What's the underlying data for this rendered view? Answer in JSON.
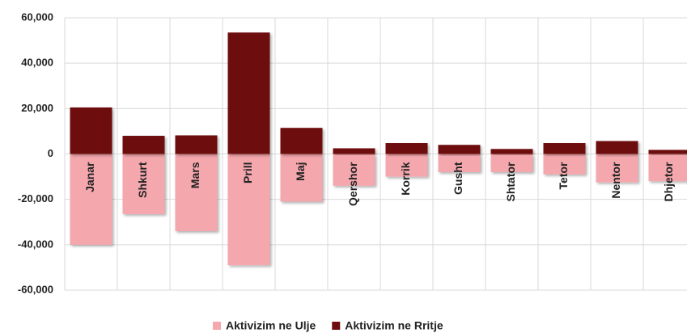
{
  "chart_data": {
    "type": "bar",
    "categories": [
      "Janar",
      "Shkurt",
      "Mars",
      "Prill",
      "Maj",
      "Qershor",
      "Korrik",
      "Gusht",
      "Shtator",
      "Tetor",
      "Nentor",
      "Dhjetor"
    ],
    "series": [
      {
        "name": "Aktivizim ne Ulje",
        "color": "#f4a7ad",
        "values": [
          -40000,
          -26500,
          -34000,
          -49000,
          -21000,
          -14000,
          -10000,
          -8000,
          -8000,
          -9000,
          -12500,
          -12000
        ]
      },
      {
        "name": "Aktivizim ne Rritje",
        "color": "#6e0c10",
        "values": [
          20500,
          8000,
          8200,
          53500,
          11500,
          2500,
          4800,
          4000,
          2200,
          4800,
          5700,
          1800
        ]
      }
    ],
    "ylim": [
      -60000,
      60000
    ],
    "yticks": [
      {
        "value": -60000,
        "label": "-60,000"
      },
      {
        "value": -40000,
        "label": "-40,000"
      },
      {
        "value": -20000,
        "label": "-20,000"
      },
      0,
      {
        "value": 20000,
        "label": "20,000"
      },
      {
        "value": 40000,
        "label": "40,000"
      },
      {
        "value": 60000,
        "label": "60,000"
      }
    ],
    "grid": true,
    "legend": "bottom"
  }
}
